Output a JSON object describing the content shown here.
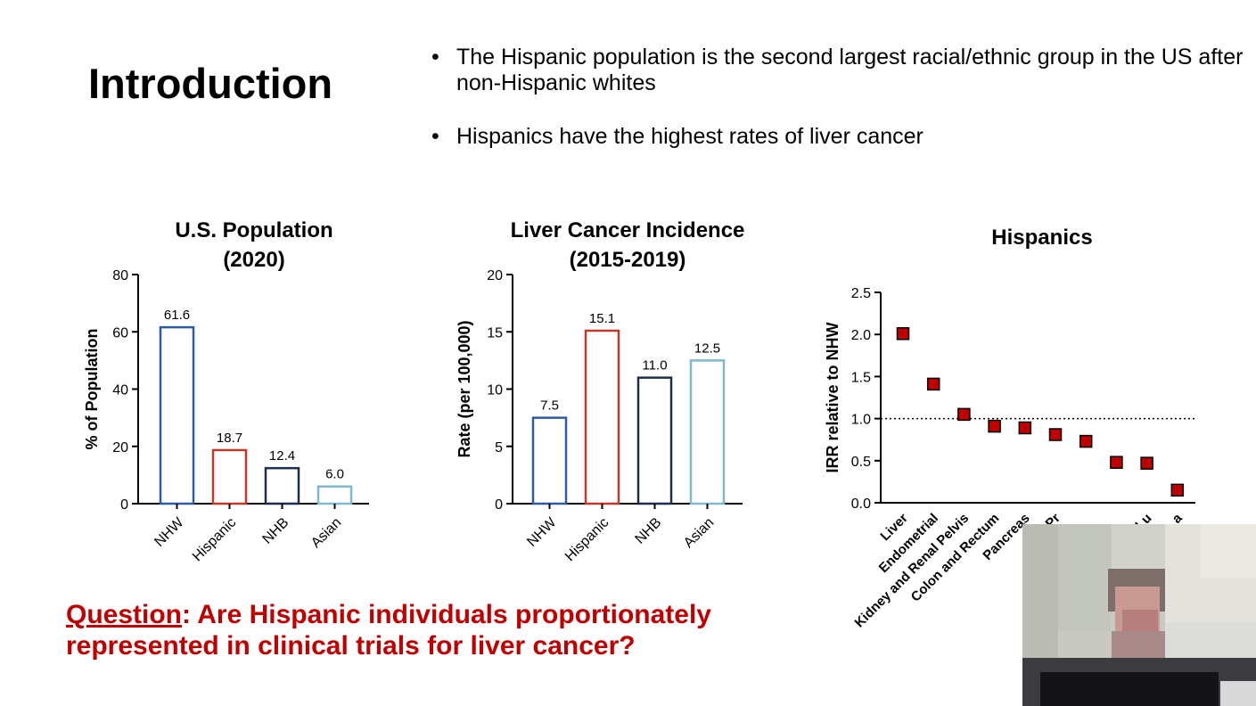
{
  "slide": {
    "title": "Introduction",
    "bullets": [
      "The Hispanic population is the second largest racial/ethnic group in the US after non-Hispanic whites",
      "Hispanics have the highest rates of liver cancer"
    ],
    "question_lead": "Question",
    "question_rest": ": Are Hispanic individuals proportionately represented in clinical trials for liver cancer?"
  },
  "colors": {
    "NHW": "#2e5aa8",
    "Hispanic": "#c0392b",
    "NHB": "#1f2d4d",
    "Asian": "#7fb8cf",
    "marker_fill": "#c00000",
    "question": "#c00000"
  },
  "chart_data": [
    {
      "type": "bar",
      "title": [
        "U.S. Population",
        "(2020)"
      ],
      "xlabel": "",
      "ylabel": "% of Population",
      "categories": [
        "NHW",
        "Hispanic",
        "NHB",
        "Asian"
      ],
      "values": [
        61.6,
        18.7,
        12.4,
        6.0
      ],
      "value_labels": [
        "61.6",
        "18.7",
        "12.4",
        "6.0"
      ],
      "ylim": [
        0,
        80
      ],
      "yticks": [
        0,
        20,
        40,
        60,
        80
      ],
      "grid": false
    },
    {
      "type": "bar",
      "title": [
        "Liver Cancer Incidence",
        "(2015-2019)"
      ],
      "xlabel": "",
      "ylabel": "Rate (per 100,000)",
      "categories": [
        "NHW",
        "Hispanic",
        "NHB",
        "Asian"
      ],
      "values": [
        7.5,
        15.1,
        11.0,
        12.5
      ],
      "value_labels": [
        "7.5",
        "15.1",
        "11.0",
        "12.5"
      ],
      "ylim": [
        0,
        20
      ],
      "yticks": [
        0,
        5,
        10,
        15,
        20
      ],
      "grid": false
    },
    {
      "type": "scatter",
      "title": [
        "Hispanics"
      ],
      "xlabel": "",
      "ylabel": "IRR relative to NHW",
      "categories": [
        "Liver",
        "Endometrial",
        "Kidney and Renal Pelvis",
        "Colon and Rectum",
        "Pancreas",
        "Pr",
        "",
        "",
        "Lu",
        "a"
      ],
      "values": [
        2.01,
        1.41,
        1.05,
        0.91,
        0.89,
        0.81,
        0.73,
        0.48,
        0.47,
        0.15
      ],
      "reference_line": 1.0,
      "ylim": [
        0,
        2.5
      ],
      "yticks": [
        "0.0",
        "0.5",
        "1.0",
        "1.5",
        "2.0",
        "2.5"
      ],
      "marker": "square",
      "grid": false
    }
  ]
}
